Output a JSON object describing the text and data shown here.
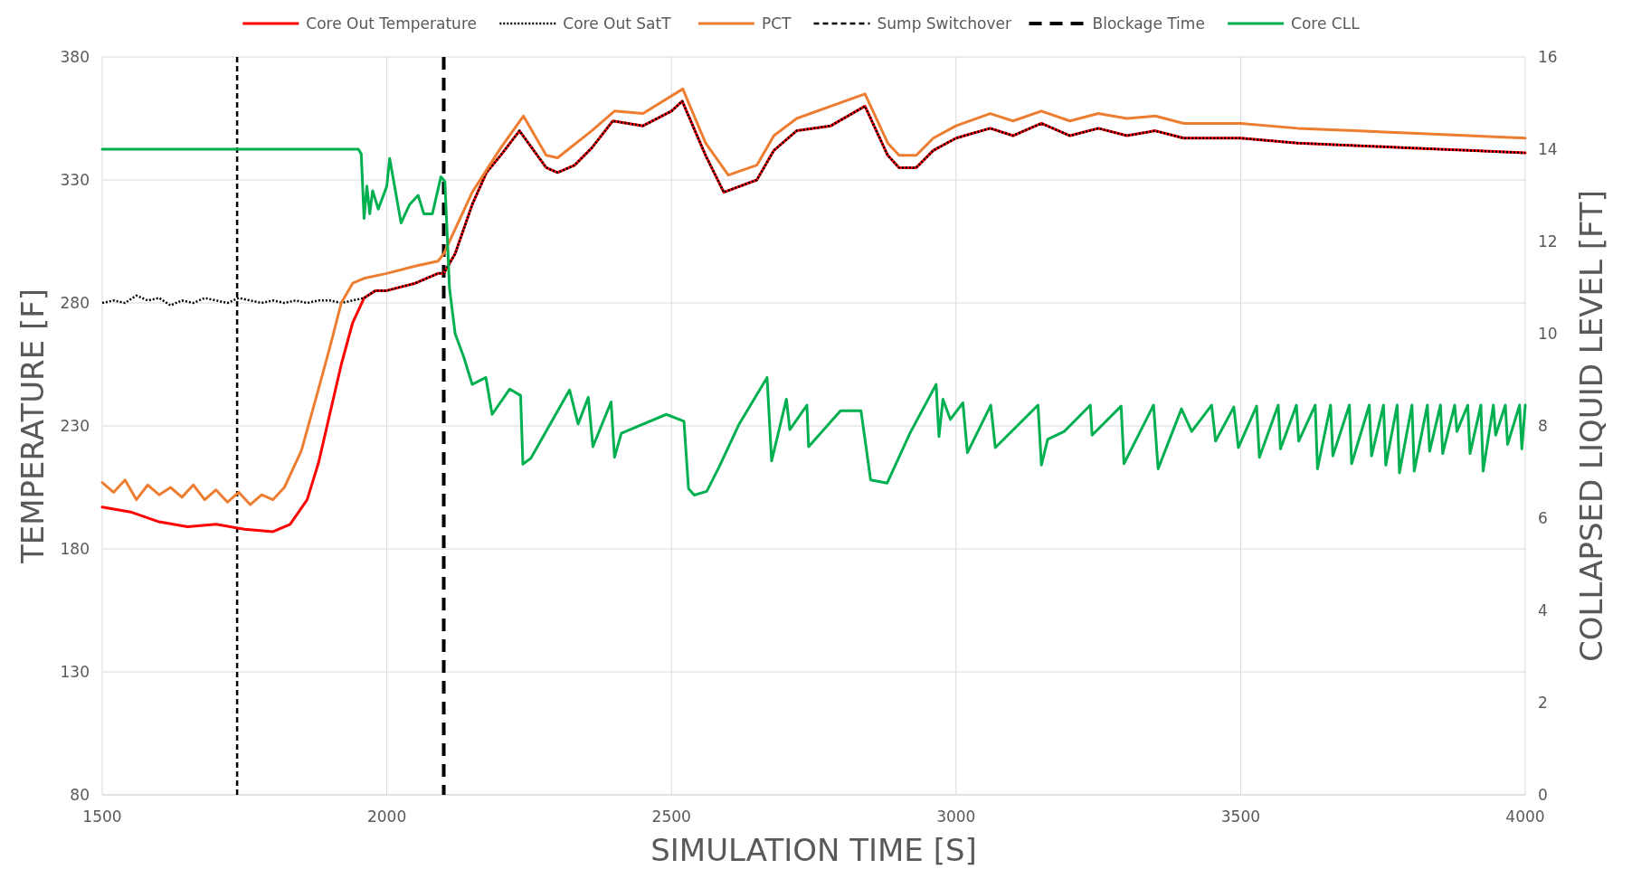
{
  "chart_data": {
    "type": "line",
    "xlabel": "SIMULATION TIME [S]",
    "ylabel": "TEMPERATURE [F]",
    "y2label": "COLLAPSED LIQUID LEVEL [FT]",
    "xlim": [
      1500,
      4000
    ],
    "xticks": [
      1500,
      2000,
      2500,
      3000,
      3500,
      4000
    ],
    "ylim": [
      80,
      380
    ],
    "yticks": [
      80,
      130,
      180,
      230,
      280,
      330,
      380
    ],
    "y2lim": [
      0,
      16
    ],
    "y2ticks": [
      0,
      2,
      4,
      6,
      8,
      10,
      12,
      14,
      16
    ],
    "grid": true,
    "legend": "top",
    "series": [
      {
        "name": "Core Out Temperature",
        "color": "#ff0000",
        "line_style": "solid",
        "x": [
          1500,
          1550,
          1600,
          1650,
          1700,
          1750,
          1800,
          1830,
          1860,
          1880,
          1900,
          1920,
          1940,
          1960,
          1980,
          2000,
          2050,
          2090,
          2100,
          2120,
          2150,
          2175,
          2200,
          2233,
          2280,
          2300,
          2330,
          2360,
          2397,
          2450,
          2500,
          2519,
          2560,
          2592,
          2650,
          2680,
          2720,
          2780,
          2840,
          2880,
          2900,
          2930,
          2960,
          3000,
          3060,
          3100,
          3150,
          3200,
          3250,
          3300,
          3350,
          3400,
          3500,
          3600,
          3700,
          3800,
          3900,
          4000
        ],
        "values": [
          197,
          195,
          191,
          189,
          190,
          188,
          187,
          190,
          200,
          215,
          235,
          255,
          272,
          282,
          285,
          285,
          288,
          292,
          292,
          300,
          320,
          333,
          340,
          350,
          335,
          333,
          336,
          343,
          354,
          352,
          358,
          362,
          340,
          325,
          330,
          342,
          350,
          352,
          360,
          340,
          335,
          335,
          342,
          347,
          351,
          348,
          353,
          348,
          351,
          348,
          350,
          347,
          347,
          345,
          344,
          343,
          342,
          341
        ]
      },
      {
        "name": "Core Out SatT",
        "color": "#000000",
        "line_style": "dotted",
        "x": [
          1500,
          1520,
          1540,
          1560,
          1580,
          1600,
          1620,
          1640,
          1660,
          1680,
          1700,
          1720,
          1740,
          1760,
          1780,
          1800,
          1820,
          1840,
          1860,
          1880,
          1900,
          1920,
          1940,
          1960,
          1980,
          2000,
          2050,
          2090,
          2100,
          2120,
          2150,
          2175,
          2200,
          2233,
          2280,
          2300,
          2330,
          2360,
          2397,
          2450,
          2500,
          2519,
          2560,
          2592,
          2650,
          2680,
          2720,
          2780,
          2840,
          2880,
          2900,
          2930,
          2960,
          3000,
          3060,
          3100,
          3150,
          3200,
          3250,
          3300,
          3350,
          3400,
          3500,
          3600,
          3700,
          3800,
          3900,
          4000
        ],
        "values": [
          280,
          281,
          280,
          283,
          281,
          282,
          279,
          281,
          280,
          282,
          281,
          280,
          282,
          281,
          280,
          281,
          280,
          281,
          280,
          281,
          281,
          280,
          281,
          282,
          285,
          285,
          288,
          292,
          292,
          300,
          320,
          333,
          340,
          350,
          335,
          333,
          336,
          343,
          354,
          352,
          358,
          362,
          340,
          325,
          330,
          342,
          350,
          352,
          360,
          340,
          335,
          335,
          342,
          347,
          351,
          348,
          353,
          348,
          351,
          348,
          350,
          347,
          347,
          345,
          344,
          343,
          342,
          341
        ]
      },
      {
        "name": "PCT",
        "color": "#ed7d31",
        "line_style": "solid",
        "x": [
          1500,
          1520,
          1540,
          1560,
          1580,
          1600,
          1620,
          1640,
          1660,
          1680,
          1700,
          1720,
          1740,
          1760,
          1780,
          1800,
          1820,
          1850,
          1880,
          1900,
          1920,
          1940,
          1960,
          2000,
          2050,
          2090,
          2100,
          2150,
          2200,
          2240,
          2280,
          2300,
          2360,
          2400,
          2450,
          2520,
          2560,
          2600,
          2650,
          2680,
          2720,
          2840,
          2880,
          2900,
          2930,
          2960,
          3000,
          3060,
          3100,
          3150,
          3200,
          3250,
          3300,
          3350,
          3400,
          3500,
          3600,
          3700,
          3800,
          3900,
          4000
        ],
        "values": [
          207,
          203,
          208,
          200,
          206,
          202,
          205,
          201,
          206,
          200,
          204,
          199,
          203,
          198,
          202,
          200,
          205,
          220,
          245,
          262,
          280,
          288,
          290,
          292,
          295,
          297,
          300,
          325,
          343,
          356,
          340,
          339,
          350,
          358,
          357,
          367,
          345,
          332,
          336,
          348,
          355,
          365,
          345,
          340,
          340,
          347,
          352,
          357,
          354,
          358,
          354,
          357,
          355,
          356,
          353,
          353,
          351,
          350,
          349,
          348,
          347
        ]
      },
      {
        "name": "Core CLL",
        "color": "#00b050",
        "line_style": "solid",
        "axis": "y2",
        "x": [
          1500,
          1950,
          1955,
          1960,
          1965,
          1970,
          1975,
          1985,
          2000,
          2005,
          2025,
          2040,
          2055,
          2065,
          2080,
          2095,
          2102,
          2110,
          2120,
          2135,
          2150,
          2174,
          2185,
          2216,
          2235,
          2239,
          2253,
          2321,
          2336,
          2354,
          2362,
          2394,
          2400,
          2412,
          2491,
          2522,
          2530,
          2540,
          2562,
          2583,
          2619,
          2668,
          2676,
          2702,
          2708,
          2738,
          2741,
          2797,
          2833,
          2850,
          2879,
          2919,
          2965,
          2970,
          2977,
          2990,
          3012,
          3020,
          3061,
          3069,
          3144,
          3150,
          3161,
          3190,
          3236,
          3239,
          3290,
          3295,
          3347,
          3355,
          3396,
          3414,
          3449,
          3456,
          3488,
          3496,
          3528,
          3533,
          3566,
          3570,
          3598,
          3602,
          3631,
          3635,
          3658,
          3662,
          3691,
          3695,
          3726,
          3730,
          3751,
          3755,
          3775,
          3779,
          3801,
          3805,
          3828,
          3832,
          3851,
          3855,
          3876,
          3880,
          3899,
          3903,
          3922,
          3926,
          3944,
          3948,
          3965,
          3969,
          3990,
          3994,
          4000
        ],
        "values": [
          14,
          14,
          13.9,
          12.5,
          13.2,
          12.6,
          13.1,
          12.7,
          13.2,
          13.8,
          12.4,
          12.8,
          13,
          12.6,
          12.6,
          13.4,
          13.3,
          11,
          10,
          9.5,
          8.9,
          9.05,
          8.25,
          8.8,
          8.66,
          7.17,
          7.3,
          8.78,
          8.04,
          8.62,
          7.55,
          8.52,
          7.32,
          7.84,
          8.25,
          8.1,
          6.64,
          6.5,
          6.58,
          7.09,
          8.04,
          9.05,
          7.24,
          8.58,
          7.92,
          8.45,
          7.55,
          8.33,
          8.33,
          6.83,
          6.76,
          7.84,
          8.9,
          7.77,
          8.58,
          8.14,
          8.5,
          7.42,
          8.45,
          7.53,
          8.45,
          7.15,
          7.71,
          7.88,
          8.45,
          7.8,
          8.43,
          7.18,
          8.45,
          7.07,
          8.37,
          7.88,
          8.45,
          7.67,
          8.41,
          7.53,
          8.43,
          7.32,
          8.45,
          7.5,
          8.45,
          7.67,
          8.45,
          7.07,
          8.45,
          7.35,
          8.45,
          7.18,
          8.45,
          7.35,
          8.45,
          7.15,
          8.45,
          6.98,
          8.45,
          7.02,
          8.45,
          7.45,
          8.45,
          7.4,
          8.45,
          7.88,
          8.45,
          7.4,
          8.45,
          7.02,
          8.45,
          7.8,
          8.45,
          7.6,
          8.45,
          7.5,
          8.45
        ]
      }
    ],
    "ref_lines": [
      {
        "axis": "x",
        "value": 1737,
        "label": "Sump Switchover",
        "color": "#000000",
        "line_style": "dashed"
      },
      {
        "axis": "x",
        "value": 2100,
        "label": "Blockage Time",
        "color": "#000000",
        "line_style": "longdash"
      }
    ]
  }
}
